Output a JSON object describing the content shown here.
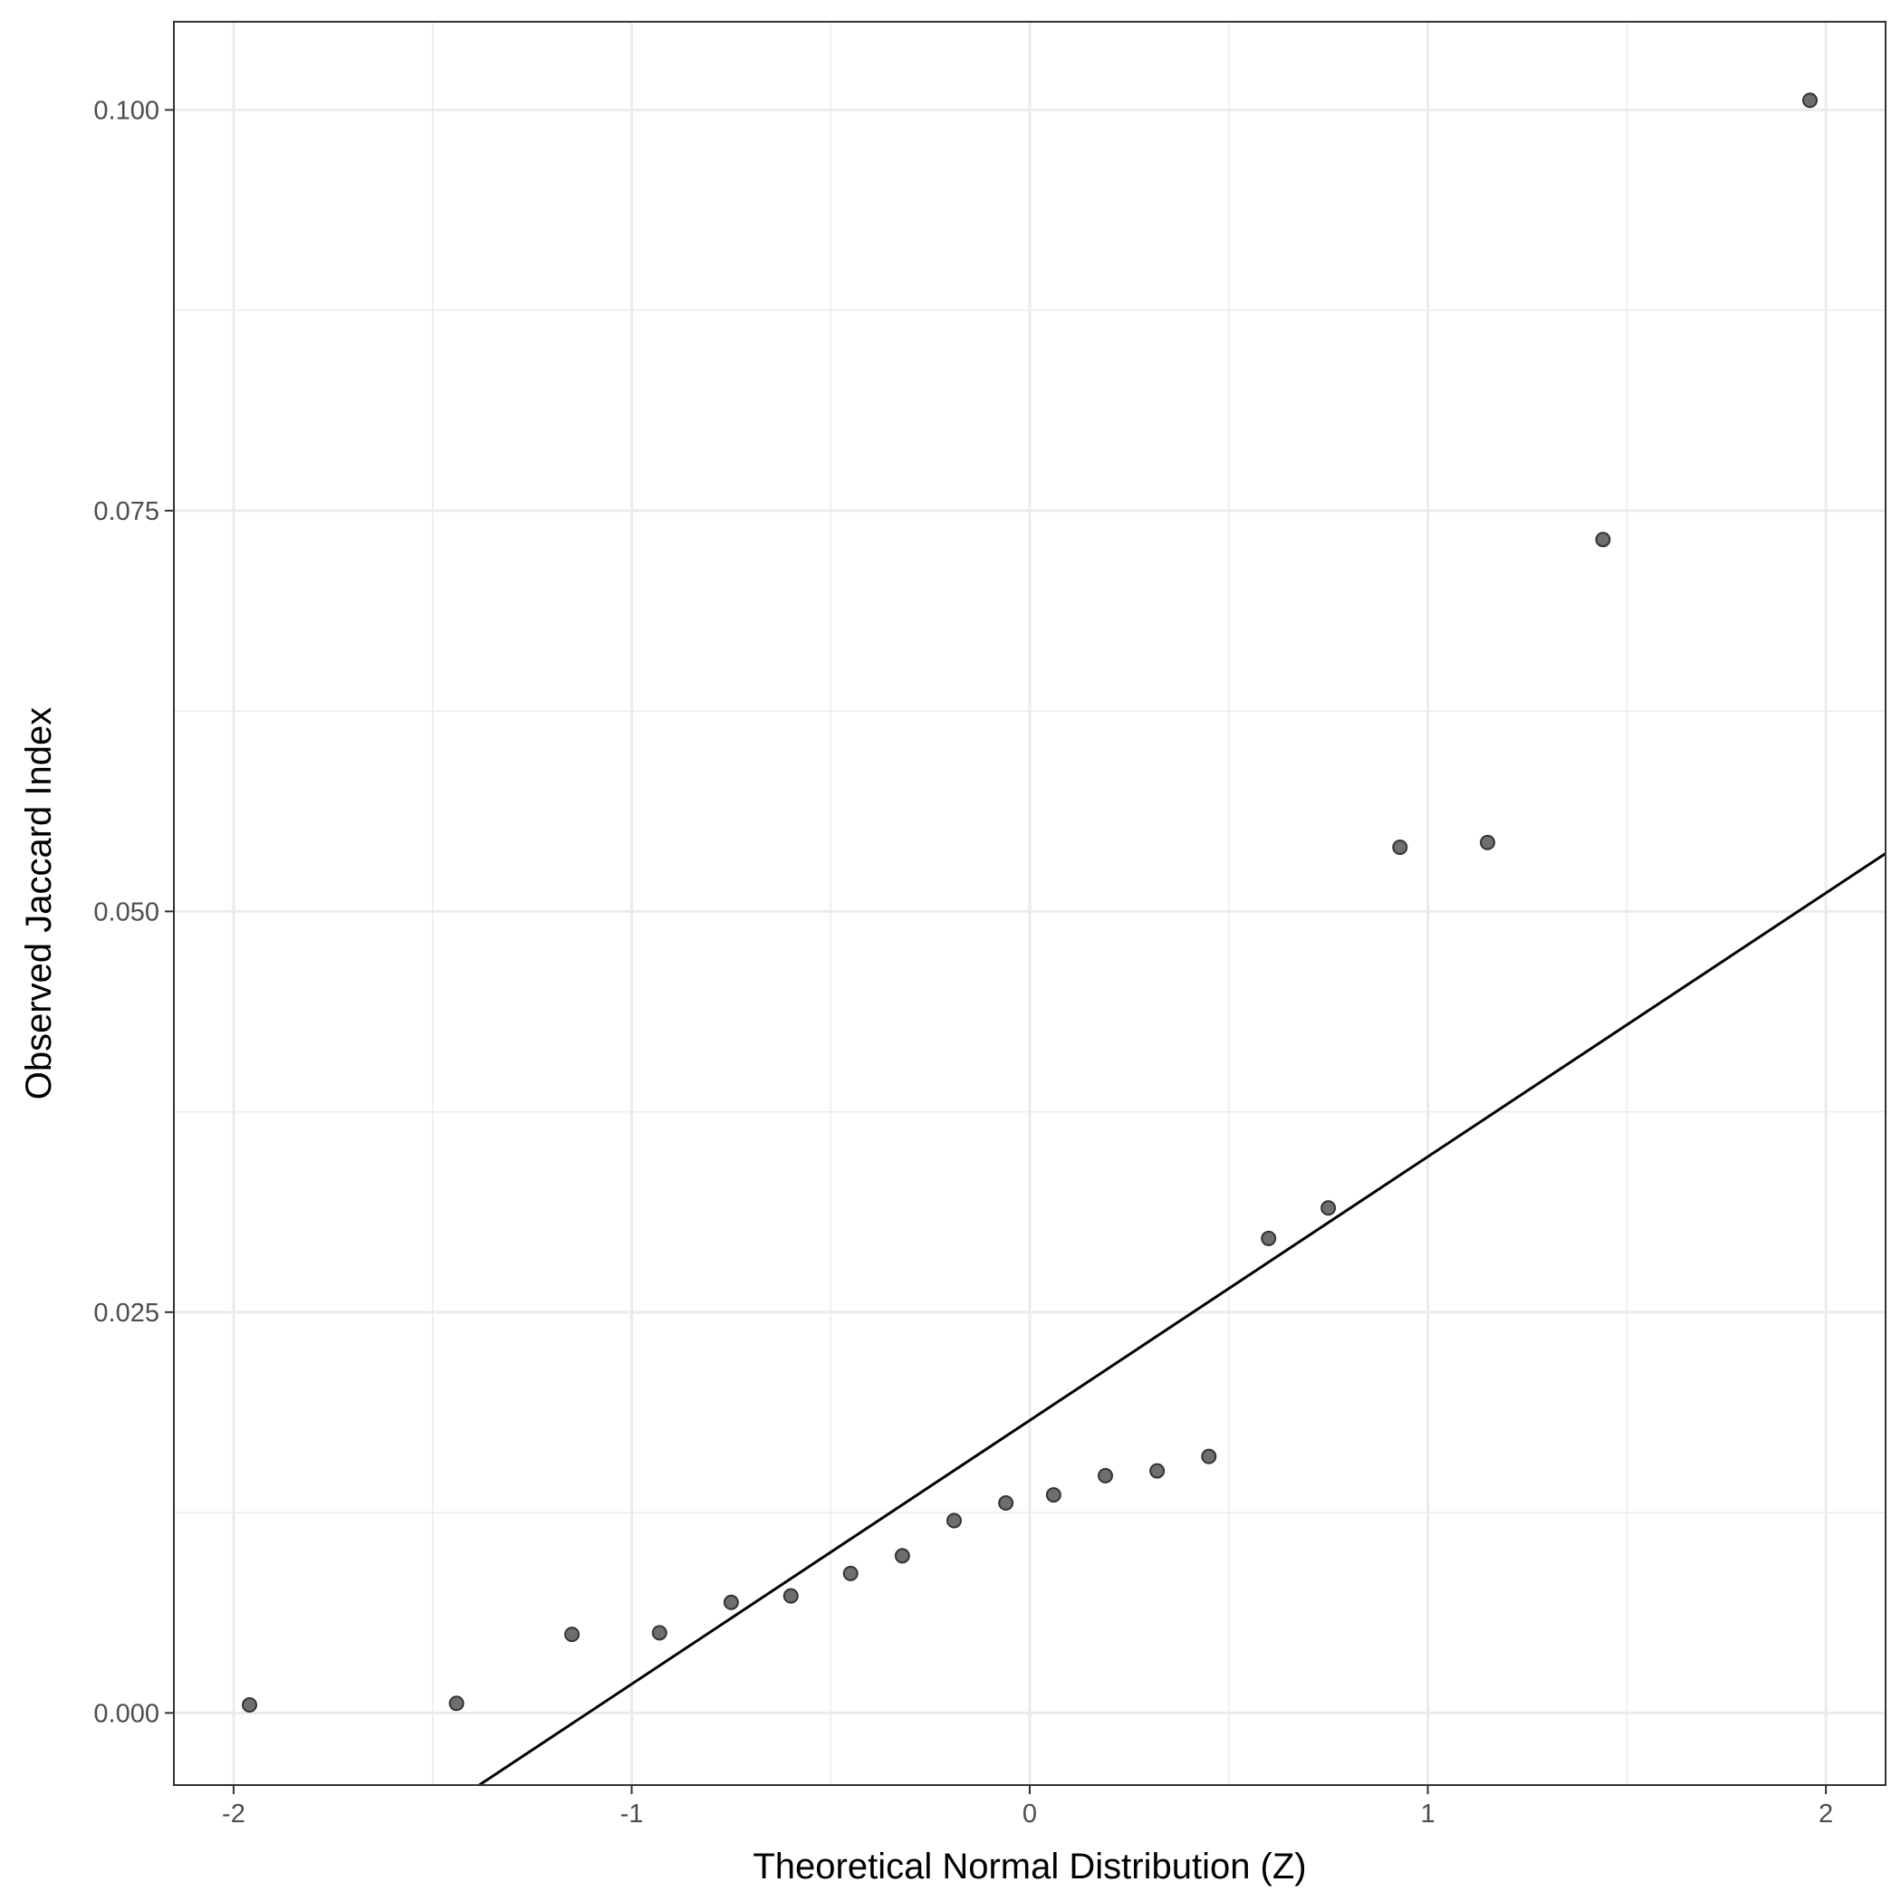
{
  "chart_data": {
    "type": "scatter",
    "xlabel": "Theoretical Normal Distribution (Z)",
    "ylabel": "Observed Jaccard Index",
    "xlim": [
      -2.15,
      2.15
    ],
    "ylim": [
      -0.0045,
      0.1055
    ],
    "x_ticks": [
      -2,
      -1,
      0,
      1,
      2
    ],
    "x_tick_labels": [
      "-2",
      "-1",
      "0",
      "1",
      "2"
    ],
    "y_ticks": [
      0.0,
      0.025,
      0.05,
      0.075,
      0.1
    ],
    "y_tick_labels": [
      "0.000",
      "0.025",
      "0.050",
      "0.075",
      "0.100"
    ],
    "grid": true,
    "points": [
      {
        "x": -1.96,
        "y": 0.0005
      },
      {
        "x": -1.44,
        "y": 0.0006
      },
      {
        "x": -1.15,
        "y": 0.0049
      },
      {
        "x": -0.93,
        "y": 0.005
      },
      {
        "x": -0.75,
        "y": 0.0069
      },
      {
        "x": -0.6,
        "y": 0.0073
      },
      {
        "x": -0.45,
        "y": 0.0087
      },
      {
        "x": -0.32,
        "y": 0.0098
      },
      {
        "x": -0.19,
        "y": 0.012
      },
      {
        "x": -0.06,
        "y": 0.0131
      },
      {
        "x": 0.06,
        "y": 0.0136
      },
      {
        "x": 0.19,
        "y": 0.0148
      },
      {
        "x": 0.32,
        "y": 0.0151
      },
      {
        "x": 0.45,
        "y": 0.016
      },
      {
        "x": 0.6,
        "y": 0.0296
      },
      {
        "x": 0.75,
        "y": 0.0315
      },
      {
        "x": 0.93,
        "y": 0.054
      },
      {
        "x": 1.15,
        "y": 0.0543
      },
      {
        "x": 1.44,
        "y": 0.0732
      },
      {
        "x": 1.96,
        "y": 0.1006
      }
    ],
    "reference_line": {
      "intercept": 0.01825,
      "slope": 0.01645
    },
    "colors": {
      "point_fill": "#6e6e6e",
      "point_stroke": "#333333",
      "line": "#000000",
      "grid": "#ebebeb",
      "panel_border": "#333333",
      "tick_label": "#4d4d4d"
    }
  }
}
